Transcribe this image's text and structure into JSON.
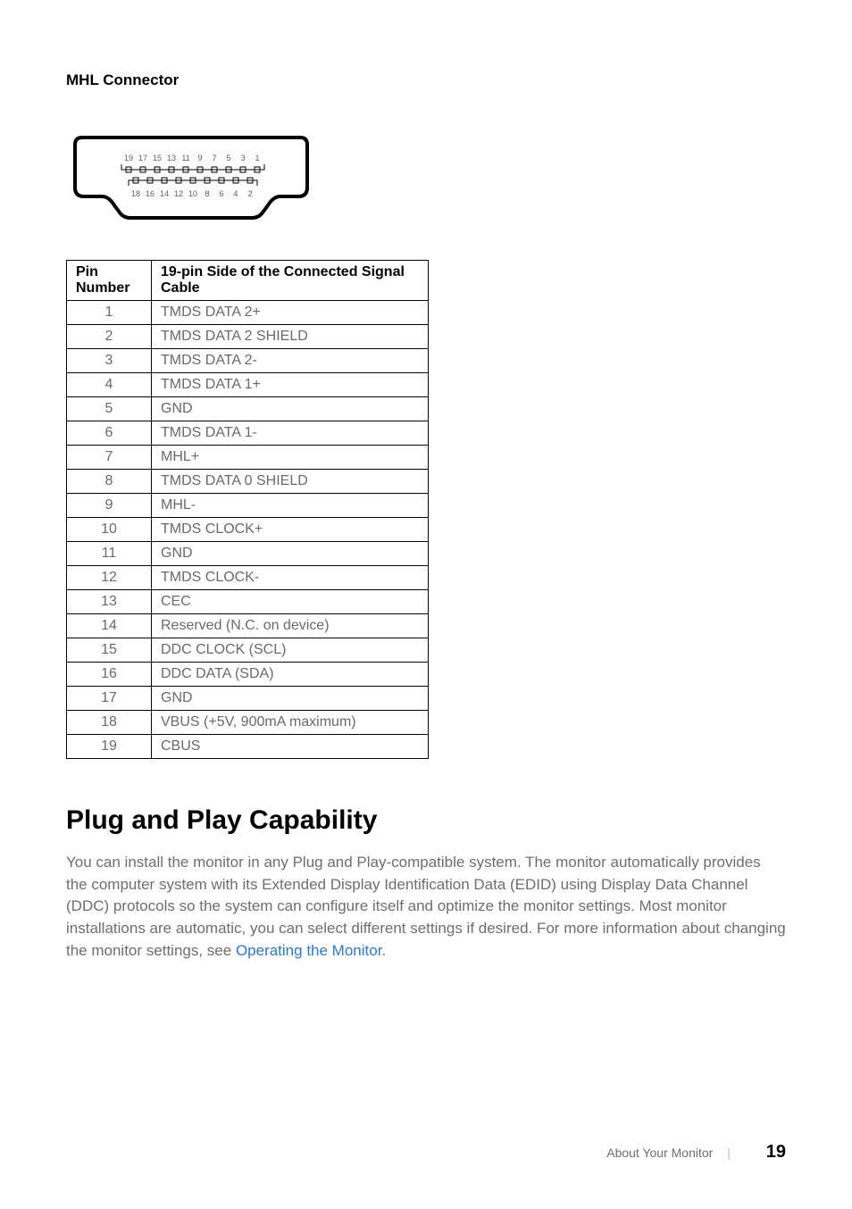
{
  "section": {
    "title": "MHL Connector"
  },
  "connector": {
    "outer_stroke": "#000000",
    "outer_stroke_width": 4,
    "inner_stroke": "#000000",
    "inner_stroke_width": 1,
    "label_color": "#5a5e60",
    "label_fontsize": 9,
    "top_labels": [
      "19",
      "17",
      "15",
      "13",
      "11",
      "9",
      "7",
      "5",
      "3",
      "1"
    ],
    "bottom_labels": [
      "18",
      "16",
      "14",
      "12",
      "10",
      "8",
      "6",
      "4",
      "2"
    ]
  },
  "table": {
    "headers": [
      "Pin Number",
      "19-pin Side of the Connected Signal Cable"
    ],
    "rows": [
      [
        "1",
        "TMDS DATA 2+"
      ],
      [
        "2",
        "TMDS DATA 2 SHIELD"
      ],
      [
        "3",
        "TMDS DATA 2-"
      ],
      [
        "4",
        "TMDS DATA 1+"
      ],
      [
        "5",
        "GND"
      ],
      [
        "6",
        "TMDS DATA 1-"
      ],
      [
        "7",
        "MHL+"
      ],
      [
        "8",
        "TMDS DATA 0 SHIELD"
      ],
      [
        "9",
        "MHL-"
      ],
      [
        "10",
        "TMDS CLOCK+"
      ],
      [
        "11",
        "GND"
      ],
      [
        "12",
        "TMDS CLOCK-"
      ],
      [
        "13",
        "CEC"
      ],
      [
        "14",
        "Reserved (N.C. on device)"
      ],
      [
        "15",
        "DDC CLOCK (SCL)"
      ],
      [
        "16",
        "DDC DATA (SDA)"
      ],
      [
        "17",
        "GND"
      ],
      [
        "18",
        "VBUS (+5V, 900mA maximum)"
      ],
      [
        "19",
        "CBUS"
      ]
    ]
  },
  "pnp": {
    "heading": "Plug and Play Capability",
    "body_pre": "You can install the monitor in any Plug and Play-compatible system. The monitor automatically provides the computer system with its Extended Display Identification Data (EDID) using Display Data Channel (DDC) protocols so the system can configure itself and optimize the monitor settings. Most monitor installations are automatic, you can select different settings if desired. For more information about changing the monitor settings, see ",
    "link_text": "Operating the Monitor",
    "body_post": "."
  },
  "footer": {
    "label": "About Your Monitor",
    "page": "19"
  }
}
